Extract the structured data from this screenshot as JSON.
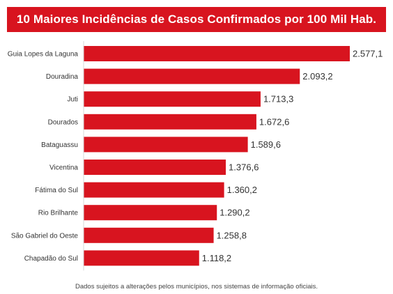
{
  "chart_data": {
    "type": "bar",
    "orientation": "horizontal",
    "title": "10 Maiores Incidências de Casos Confirmados por 100 Mil Hab.",
    "categories": [
      "Guia Lopes da Laguna",
      "Douradina",
      "Juti",
      "Dourados",
      "Bataguassu",
      "Vicentina",
      "Fátima do Sul",
      "Rio Brilhante",
      "São Gabriel do Oeste",
      "Chapadão do Sul"
    ],
    "values": [
      2577.1,
      2093.2,
      1713.3,
      1672.6,
      1589.6,
      1376.6,
      1360.2,
      1290.2,
      1258.8,
      1118.2
    ],
    "value_labels": [
      "2.577,1",
      "2.093,2",
      "1.713,3",
      "1.672,6",
      "1.589,6",
      "1.376,6",
      "1.360,2",
      "1.290,2",
      "1.258,8",
      "1.118,2"
    ],
    "xlim": [
      0,
      2577.1
    ],
    "bar_color": "#d8141f",
    "grid": false,
    "legend": "none"
  },
  "footnote": "Dados sujeitos a alterações pelos municípios, nos sistemas de informação oficiais."
}
